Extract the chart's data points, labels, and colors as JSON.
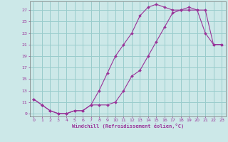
{
  "xlabel": "Windchill (Refroidissement éolien,°C)",
  "bg_color": "#cce8e8",
  "grid_color": "#99cccc",
  "line_color": "#993399",
  "xlim": [
    -0.5,
    23.5
  ],
  "ylim": [
    8.5,
    28.5
  ],
  "xticks": [
    0,
    1,
    2,
    3,
    4,
    5,
    6,
    7,
    8,
    9,
    10,
    11,
    12,
    13,
    14,
    15,
    16,
    17,
    18,
    19,
    20,
    21,
    22,
    23
  ],
  "yticks": [
    9,
    11,
    13,
    15,
    17,
    19,
    21,
    23,
    25,
    27
  ],
  "line1_x": [
    0,
    1,
    2,
    3,
    4,
    5,
    6,
    7,
    8,
    9,
    10,
    11,
    12,
    13,
    14,
    15,
    16,
    17,
    18,
    19,
    20,
    21,
    22,
    23
  ],
  "line1_y": [
    11.5,
    10.5,
    9.5,
    9.0,
    9.0,
    9.5,
    9.5,
    10.5,
    13.0,
    16.0,
    19.0,
    21.0,
    23.0,
    26.0,
    27.5,
    28.0,
    27.5,
    27.0,
    27.0,
    27.0,
    27.0,
    23.0,
    21.0,
    21.0
  ],
  "line2_x": [
    0,
    1,
    2,
    3,
    4,
    5,
    6,
    7,
    8,
    9,
    10,
    11,
    12,
    13,
    14,
    15,
    16,
    17,
    18,
    19,
    20,
    21,
    22,
    23
  ],
  "line2_y": [
    11.5,
    10.5,
    9.5,
    9.0,
    9.0,
    9.5,
    9.5,
    10.5,
    10.5,
    10.5,
    11.0,
    13.0,
    15.5,
    16.5,
    19.0,
    21.5,
    24.0,
    26.5,
    27.0,
    27.5,
    27.0,
    27.0,
    21.0,
    21.0
  ]
}
